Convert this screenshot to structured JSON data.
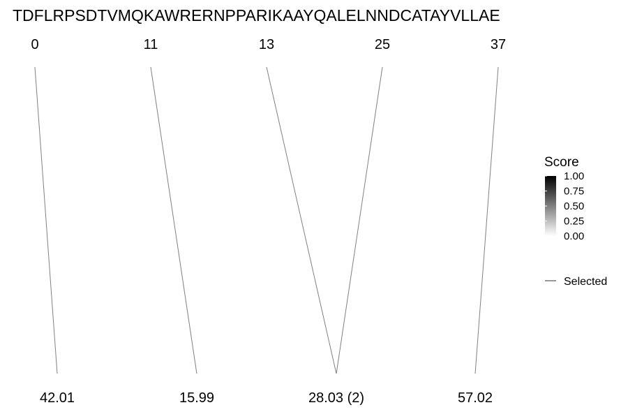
{
  "chart_data": {
    "type": "fragment-link",
    "sequence": "TDFLRPSDTVMQKAWRERNPPARIKAAYQALELNNDCATAYVLLAE",
    "top_positions": [
      "0",
      "11",
      "13",
      "25",
      "37"
    ],
    "bottom_labels": [
      "42.01",
      "15.99",
      "28.03 (2)",
      "57.02"
    ],
    "links": [
      {
        "from": 0,
        "to": 0,
        "score": 0.5
      },
      {
        "from": 1,
        "to": 1,
        "score": 0.5
      },
      {
        "from": 2,
        "to": 2,
        "score": 0.5
      },
      {
        "from": 3,
        "to": 2,
        "score": 0.5
      },
      {
        "from": 4,
        "to": 3,
        "score": 0.5
      }
    ],
    "legend": {
      "title": "Score",
      "ticks": [
        "1.00",
        "0.75",
        "0.50",
        "0.25",
        "0.00"
      ],
      "gradient": [
        "#000000",
        "#ffffff"
      ],
      "selected_label": "Selected"
    },
    "line_color": "#808080"
  }
}
